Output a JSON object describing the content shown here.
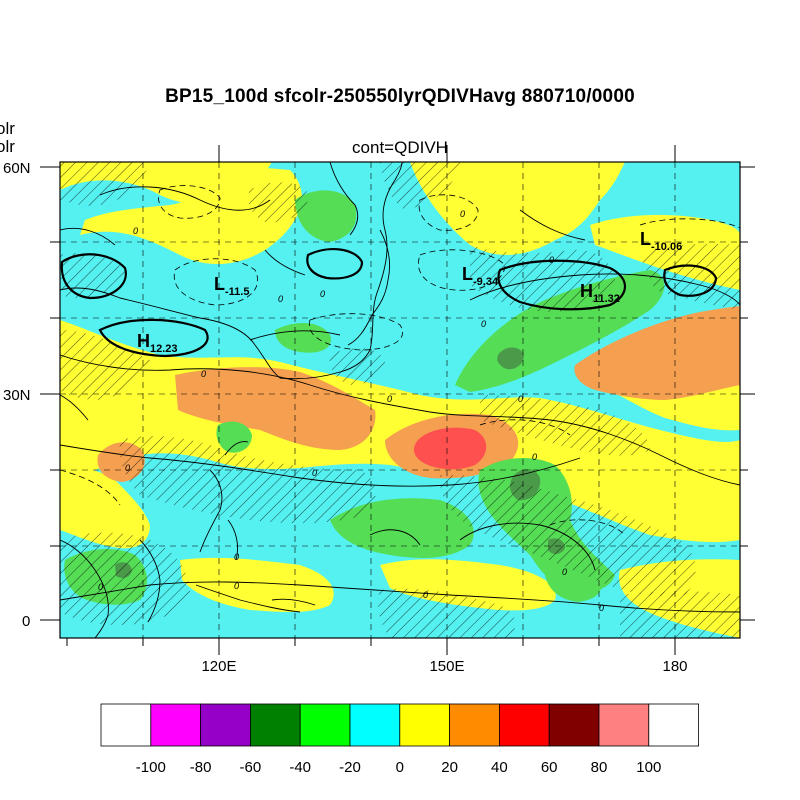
{
  "title": "BP15_100d sfcolr-250550lyrQDIVHavg  880710/0000",
  "left_labels": [
    "olr",
    "olr"
  ],
  "subtitle": "cont=QDIVH",
  "axes": {
    "lat_labels": [
      "60N",
      "30N",
      "0"
    ],
    "lon_labels": [
      "120E",
      "150E",
      "180"
    ]
  },
  "highs_lows": [
    {
      "letter": "L",
      "value": "-11.5"
    },
    {
      "letter": "L",
      "value": "-9.34"
    },
    {
      "letter": "L",
      "value": "-10.06"
    },
    {
      "letter": "H",
      "value": "11.32"
    },
    {
      "letter": "H",
      "value": "12.23"
    }
  ],
  "contour_label": "0",
  "colorbar": {
    "labels": [
      "-100",
      "-80",
      "-60",
      "-40",
      "-20",
      "0",
      "20",
      "40",
      "60",
      "80",
      "100"
    ],
    "colors": [
      "#ffffff",
      "#ff00ff",
      "#9400c8",
      "#008000",
      "#00ff00",
      "#00ffff",
      "#ffff00",
      "#ff8c00",
      "#ff0000",
      "#800000",
      "#ff8080",
      "#ffffff"
    ]
  },
  "field_colors": {
    "cyan": "#55f0f0",
    "yellow": "#ffff33",
    "green": "#55dd55",
    "dark_green": "#4a9a4a",
    "orange": "#f5a050",
    "red": "#ff5050"
  }
}
